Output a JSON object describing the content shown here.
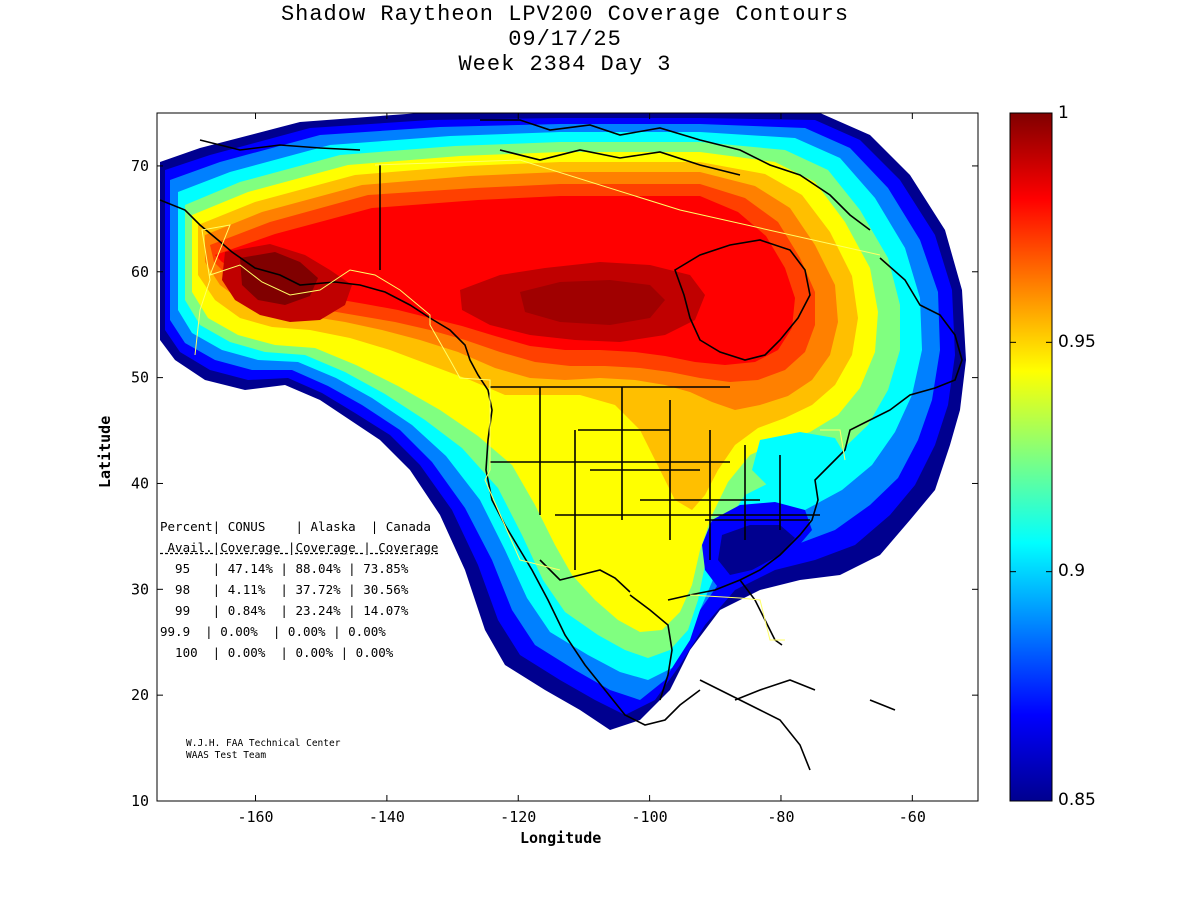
{
  "title": {
    "line1": "Shadow Raytheon LPV200 Coverage Contours",
    "line2": "09/17/25",
    "line3": "Week 2384 Day 3"
  },
  "chart_data": {
    "type": "heatmap",
    "xlabel": "Longitude",
    "ylabel": "Latitude",
    "xlim": [
      -175,
      -50
    ],
    "ylim": [
      10,
      75
    ],
    "xticks": [
      "-160",
      "-140",
      "-120",
      "-100",
      "-80",
      "-60"
    ],
    "yticks": [
      "70",
      "60",
      "50",
      "40",
      "30",
      "20",
      "10"
    ],
    "colorbar": {
      "min": 0.85,
      "max": 1,
      "ticks": [
        "1",
        "0.95",
        "0.9",
        "0.85"
      ],
      "colormap": "jet"
    },
    "availability_table": {
      "header1": [
        "Percent",
        "CONUS",
        "Alaska",
        "Canada"
      ],
      "header2": [
        "Avail.",
        "Coverage",
        "Coverage",
        "Coverage"
      ],
      "rows": [
        [
          "95",
          "47.14%",
          "88.04%",
          "73.85%"
        ],
        [
          "98",
          "4.11%",
          "37.72%",
          "30.56%"
        ],
        [
          "99",
          "0.84%",
          "23.24%",
          "14.07%"
        ],
        [
          "99.9",
          "0.00%",
          "0.00%",
          "0.00%"
        ],
        [
          "100",
          "0.00%",
          "0.00%",
          "0.00%"
        ]
      ]
    }
  },
  "credits": {
    "line1": "W.J.H. FAA Technical Center",
    "line2": "WAAS Test Team"
  },
  "colors": {
    "jet": [
      "#00008f",
      "#0000ff",
      "#0080ff",
      "#00ffff",
      "#80ff80",
      "#ffff00",
      "#ff8000",
      "#ff0000",
      "#800000"
    ],
    "coastline": "#000000",
    "region_outline": "#ffff66"
  }
}
